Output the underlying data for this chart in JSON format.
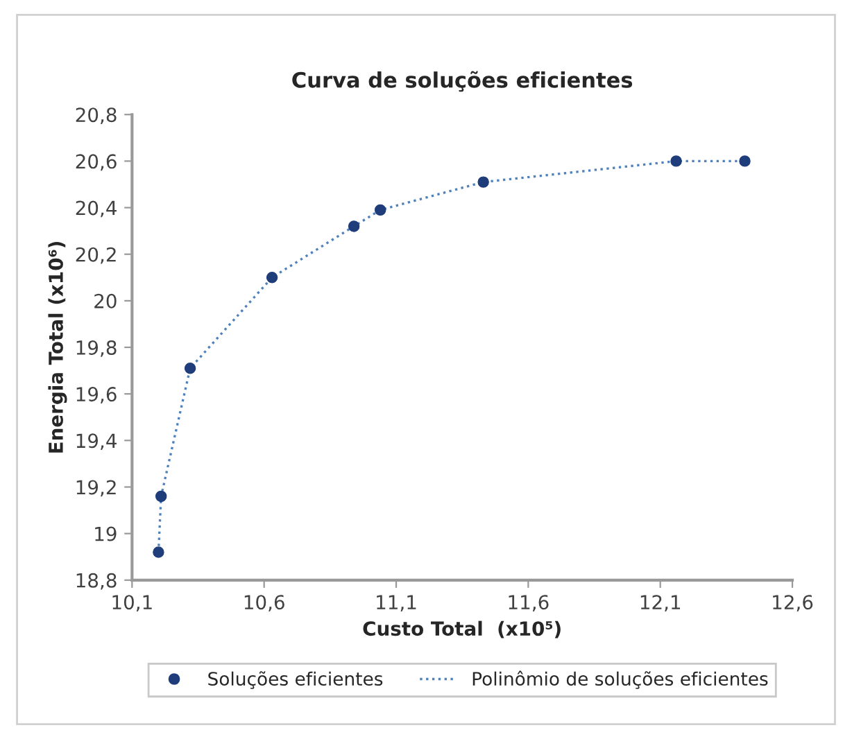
{
  "chart_data": {
    "type": "scatter",
    "title": "Curva de soluções eficientes",
    "xlabel": "Custo Total  (x10⁵)",
    "ylabel": "Energia Total (x10⁶)",
    "x": [
      10.2,
      10.21,
      10.32,
      10.63,
      10.94,
      11.04,
      11.43,
      12.16,
      12.42
    ],
    "series": [
      {
        "name": "Soluções eficientes",
        "color": "#1f3d7a",
        "marker": "circle",
        "values": [
          18.92,
          19.16,
          19.71,
          20.1,
          20.32,
          20.39,
          20.51,
          20.6,
          20.6
        ]
      },
      {
        "name": "Polinômio de soluções eficientes",
        "type": "line",
        "color": "#4f81bd",
        "line_style": "dotted",
        "marker": "none",
        "values": [
          18.92,
          19.16,
          19.71,
          20.1,
          20.32,
          20.39,
          20.51,
          20.6,
          20.6
        ]
      }
    ],
    "xlim": [
      10.1,
      12.6
    ],
    "xticks": [
      {
        "value": 10.1,
        "label": "10,1"
      },
      {
        "value": 10.6,
        "label": "10,6"
      },
      {
        "value": 11.1,
        "label": "11,1"
      },
      {
        "value": 11.6,
        "label": "11,6"
      },
      {
        "value": 12.1,
        "label": "12,1"
      },
      {
        "value": 12.6,
        "label": "12,6"
      }
    ],
    "ylim": [
      18.8,
      20.8
    ],
    "yticks": [
      {
        "value": 18.8,
        "label": "18,8"
      },
      {
        "value": 19,
        "label": "19"
      },
      {
        "value": 19.2,
        "label": "19,2"
      },
      {
        "value": 19.4,
        "label": "19,4"
      },
      {
        "value": 19.6,
        "label": "19,6"
      },
      {
        "value": 19.8,
        "label": "19,8"
      },
      {
        "value": 20,
        "label": "20"
      },
      {
        "value": 20.2,
        "label": "20,2"
      },
      {
        "value": 20.4,
        "label": "20,4"
      },
      {
        "value": 20.6,
        "label": "20,6"
      },
      {
        "value": 20.8,
        "label": "20,8"
      }
    ],
    "grid": false,
    "legend": "bottom"
  }
}
